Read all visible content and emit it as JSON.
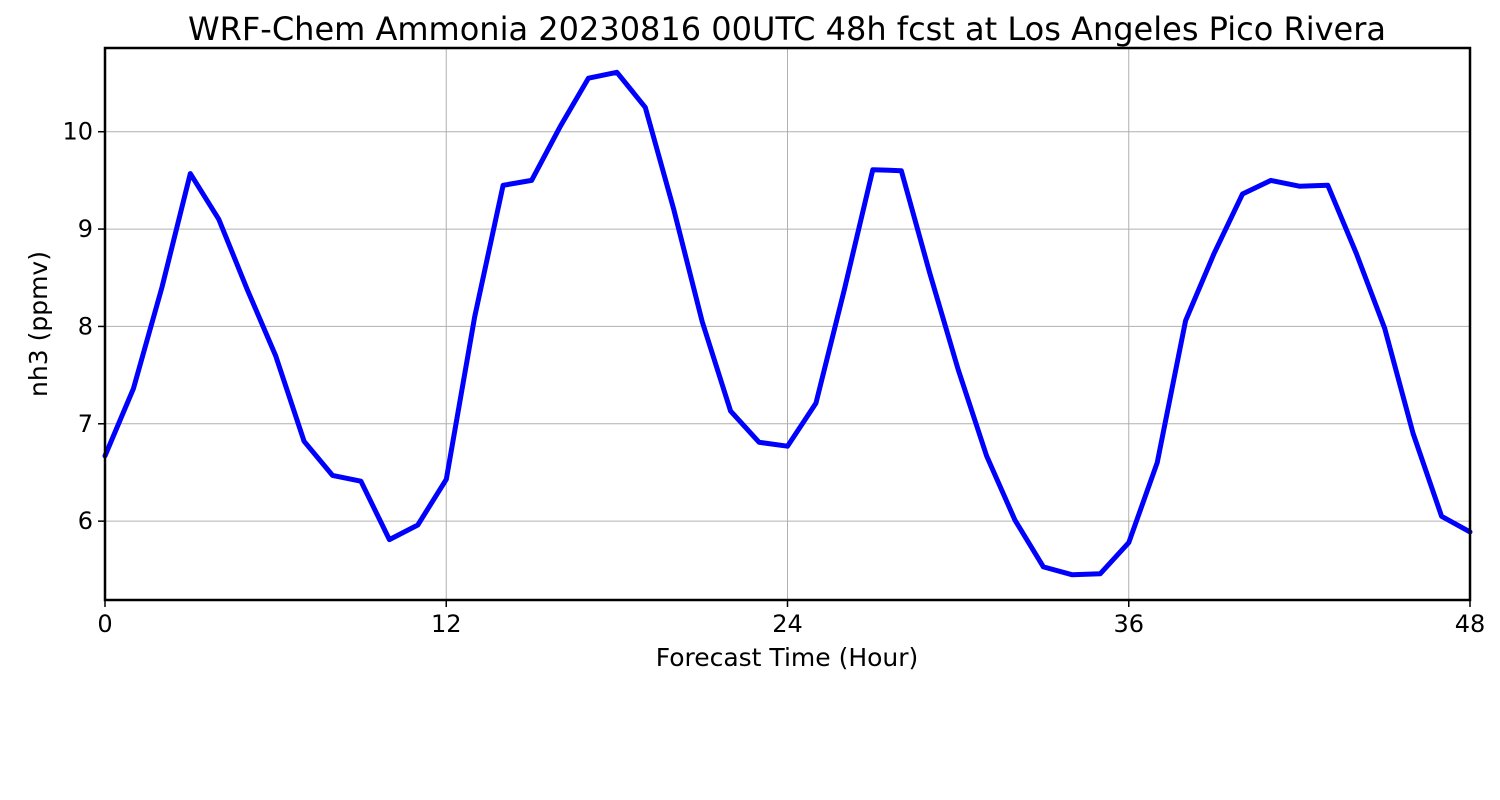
{
  "chart_data": {
    "type": "line",
    "title": "WRF-Chem Ammonia  20230816 00UTC 48h fcst at Los Angeles Pico Rivera",
    "xlabel": "Forecast Time (Hour)",
    "ylabel": "nh3  (ppmv)",
    "xlim": [
      0,
      48
    ],
    "ylim": [
      5.19,
      10.86
    ],
    "xticks": [
      0,
      12,
      24,
      36,
      48
    ],
    "yticks": [
      6,
      7,
      8,
      9,
      10
    ],
    "grid": true,
    "line_color": "#0000ff",
    "x": [
      0,
      1,
      2,
      3,
      4,
      5,
      6,
      7,
      8,
      9,
      10,
      11,
      12,
      13,
      14,
      15,
      16,
      17,
      18,
      19,
      20,
      21,
      22,
      23,
      24,
      25,
      26,
      27,
      28,
      29,
      30,
      31,
      32,
      33,
      34,
      35,
      36,
      37,
      38,
      39,
      40,
      41,
      42,
      43,
      44,
      45,
      46,
      47,
      48
    ],
    "values": [
      6.67,
      7.36,
      8.4,
      9.57,
      9.1,
      8.38,
      7.7,
      6.82,
      6.47,
      6.41,
      5.81,
      5.96,
      6.43,
      8.1,
      9.45,
      9.5,
      10.05,
      10.55,
      10.61,
      10.25,
      9.2,
      8.05,
      7.13,
      6.81,
      6.77,
      7.21,
      8.38,
      9.61,
      9.6,
      8.55,
      7.56,
      6.67,
      6.01,
      5.53,
      5.45,
      5.46,
      5.78,
      6.6,
      8.06,
      8.75,
      9.36,
      9.5,
      9.44,
      9.45,
      8.75,
      7.98,
      6.9,
      6.05,
      5.89
    ]
  }
}
